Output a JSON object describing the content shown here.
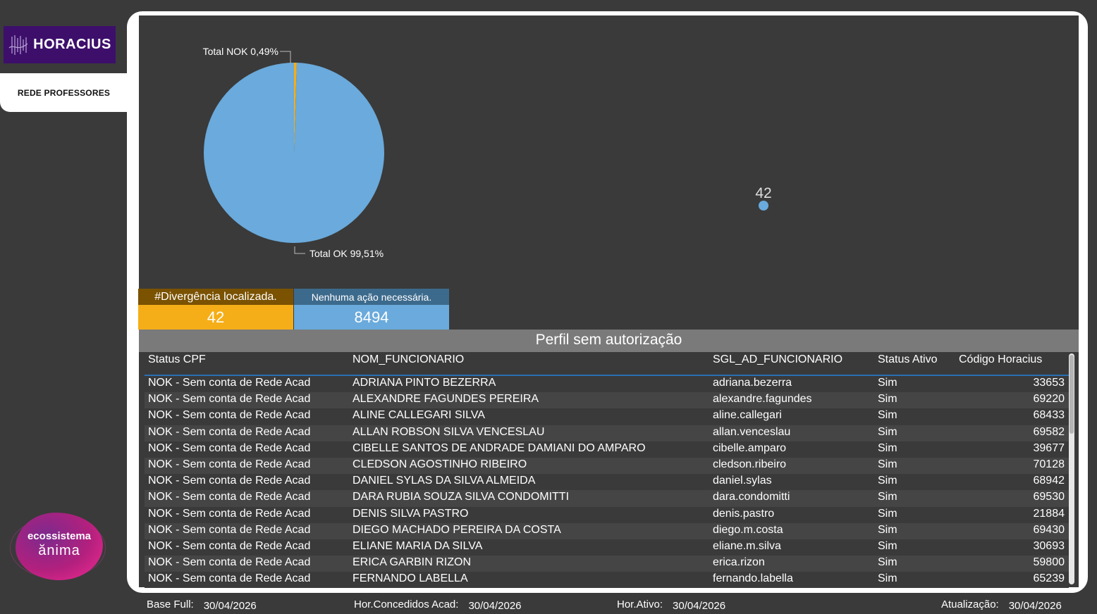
{
  "brand": {
    "name": "HORACIUS"
  },
  "nav": {
    "active_label": "REDE PROFESSORES"
  },
  "ecosystem": {
    "line1": "ecossistema",
    "line2": "ănima"
  },
  "chart_data": [
    {
      "type": "pie",
      "slices": [
        {
          "label": "Total NOK 0,49%",
          "name": "Total NOK",
          "value": 0.49,
          "color": "#f5ae18"
        },
        {
          "label": "Total OK 99,51%",
          "name": "Total OK",
          "value": 99.51,
          "color": "#6aaadc"
        }
      ]
    },
    {
      "type": "scatter",
      "points": [
        {
          "label": "42",
          "value": 42
        }
      ],
      "color": "#6aaadc"
    }
  ],
  "kpis": {
    "nok": {
      "label": "#Divergência localizada.",
      "value": "42",
      "color": "#f5ae18"
    },
    "ok": {
      "label": "Nenhuma ação necessária.",
      "value": "8494",
      "color": "#6aaadc"
    }
  },
  "table": {
    "title": "Perfil sem autorização",
    "columns": [
      "Status CPF",
      "NOM_FUNCIONARIO",
      "SGL_AD_FUNCIONARIO",
      "Status Ativo",
      "Código Horacius"
    ],
    "rows": [
      [
        "NOK - Sem conta de Rede Acad",
        "ADRIANA PINTO BEZERRA",
        "adriana.bezerra",
        "Sim",
        "33653"
      ],
      [
        "NOK - Sem conta de Rede Acad",
        "ALEXANDRE FAGUNDES PEREIRA",
        "alexandre.fagundes",
        "Sim",
        "69220"
      ],
      [
        "NOK - Sem conta de Rede Acad",
        "ALINE CALLEGARI SILVA",
        "aline.callegari",
        "Sim",
        "68433"
      ],
      [
        "NOK - Sem conta de Rede Acad",
        "ALLAN ROBSON SILVA VENCESLAU",
        "allan.venceslau",
        "Sim",
        "69582"
      ],
      [
        "NOK - Sem conta de Rede Acad",
        "CIBELLE SANTOS DE ANDRADE DAMIANI DO AMPARO",
        "cibelle.amparo",
        "Sim",
        "39677"
      ],
      [
        "NOK - Sem conta de Rede Acad",
        "CLEDSON AGOSTINHO RIBEIRO",
        "cledson.ribeiro",
        "Sim",
        "70128"
      ],
      [
        "NOK - Sem conta de Rede Acad",
        "DANIEL SYLAS DA SILVA ALMEIDA",
        "daniel.sylas",
        "Sim",
        "68942"
      ],
      [
        "NOK - Sem conta de Rede Acad",
        "DARA RUBIA SOUZA SILVA CONDOMITTI",
        "dara.condomitti",
        "Sim",
        "69530"
      ],
      [
        "NOK - Sem conta de Rede Acad",
        "DENIS SILVA PASTRO",
        "denis.pastro",
        "Sim",
        "21884"
      ],
      [
        "NOK - Sem conta de Rede Acad",
        "DIEGO MACHADO PEREIRA DA COSTA",
        "diego.m.costa",
        "Sim",
        "69430"
      ],
      [
        "NOK - Sem conta de Rede Acad",
        "ELIANE MARIA DA SILVA",
        "eliane.m.silva",
        "Sim",
        "30693"
      ],
      [
        "NOK - Sem conta de Rede Acad",
        "ERICA GARBIN RIZON",
        "erica.rizon",
        "Sim",
        "59800"
      ],
      [
        "NOK - Sem conta de Rede Acad",
        "FERNANDO LABELLA",
        "fernando.labella",
        "Sim",
        "65239"
      ]
    ]
  },
  "footer": {
    "base_full_label": "Base Full:",
    "base_full_value": "30/04/2026",
    "hor_concedidos_label": "Hor.Concedidos Acad:",
    "hor_concedidos_value": "30/04/2026",
    "hor_ativo_label": "Hor.Ativo:",
    "hor_ativo_value": "30/04/2026",
    "atualizacao_label": "Atualização:",
    "atualizacao_value": "30/04/2026"
  }
}
